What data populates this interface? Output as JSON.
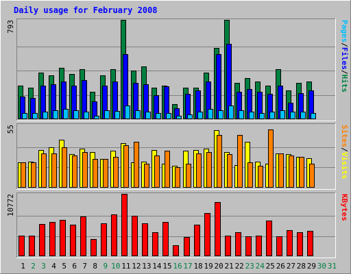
{
  "title": "Daily usage for February 2008",
  "colors": {
    "background": "#c0c0c0",
    "plot_bg": "#c0c0c0",
    "title": "#0000ff",
    "pages": "#00c0ff",
    "files": "#0000ff",
    "hits": "#008040",
    "sites": "#ff8000",
    "visits": "#ffff00",
    "kbytes": "#ff0000",
    "weekend_label": "#008040",
    "weekday_label": "#000000",
    "grid": "#808080"
  },
  "chart_data": [
    {
      "type": "bar",
      "panel": "top",
      "ymax_label": "793",
      "ylim": [
        0,
        793
      ],
      "x": [
        1,
        2,
        3,
        4,
        5,
        6,
        7,
        8,
        9,
        10,
        11,
        12,
        13,
        14,
        15,
        16,
        17,
        18,
        19,
        20,
        21,
        22,
        23,
        24,
        25,
        26,
        27,
        28,
        29,
        30,
        31
      ],
      "series": [
        {
          "name": "Hits",
          "values": [
            270,
            250,
            370,
            350,
            410,
            360,
            400,
            220,
            350,
            400,
            793,
            390,
            420,
            250,
            270,
            120,
            250,
            250,
            370,
            570,
            793,
            290,
            330,
            300,
            270,
            400,
            230,
            290,
            300,
            0,
            0
          ]
        },
        {
          "name": "Files",
          "values": [
            180,
            170,
            270,
            280,
            300,
            270,
            310,
            140,
            270,
            300,
            520,
            290,
            280,
            190,
            260,
            90,
            200,
            230,
            300,
            520,
            600,
            220,
            240,
            220,
            200,
            270,
            130,
            210,
            230,
            0,
            0
          ]
        },
        {
          "name": "Pages",
          "values": [
            50,
            50,
            60,
            70,
            80,
            70,
            60,
            30,
            70,
            65,
            110,
            70,
            60,
            50,
            50,
            25,
            40,
            60,
            80,
            70,
            110,
            70,
            60,
            50,
            60,
            70,
            60,
            60,
            50,
            0,
            0
          ]
        }
      ],
      "legend": [
        "Pages",
        "Files",
        "Hits"
      ]
    },
    {
      "type": "bar",
      "panel": "middle",
      "ymax_label": "55",
      "ylim": [
        0,
        55
      ],
      "x": [
        1,
        2,
        3,
        4,
        5,
        6,
        7,
        8,
        9,
        10,
        11,
        12,
        13,
        14,
        15,
        16,
        17,
        18,
        19,
        20,
        21,
        22,
        23,
        24,
        25,
        26,
        27,
        28,
        29,
        30,
        31
      ],
      "series": [
        {
          "name": "Visits",
          "values": [
            22,
            23,
            33,
            35,
            42,
            29,
            34,
            31,
            25,
            32,
            39,
            22,
            23,
            33,
            21,
            19,
            32,
            33,
            34,
            50,
            31,
            20,
            40,
            23,
            21,
            30,
            29,
            27,
            26,
            0,
            0
          ]
        },
        {
          "name": "Sites",
          "values": [
            22,
            22,
            30,
            30,
            35,
            28,
            31,
            25,
            25,
            27,
            37,
            40,
            21,
            28,
            32,
            18,
            21,
            30,
            31,
            46,
            29,
            46,
            22,
            19,
            51,
            30,
            28,
            27,
            21,
            0,
            0
          ]
        }
      ],
      "legend": [
        "Sites",
        "Visits"
      ]
    },
    {
      "type": "bar",
      "panel": "bottom",
      "ymax_label": "10772",
      "ylim": [
        0,
        10772
      ],
      "x": [
        1,
        2,
        3,
        4,
        5,
        6,
        7,
        8,
        9,
        10,
        11,
        12,
        13,
        14,
        15,
        16,
        17,
        18,
        19,
        20,
        21,
        22,
        23,
        24,
        25,
        26,
        27,
        28,
        29,
        30,
        31
      ],
      "series": [
        {
          "name": "KBytes",
          "values": [
            3600,
            3500,
            5600,
            5900,
            6300,
            5400,
            6900,
            3000,
            5700,
            7200,
            10772,
            7000,
            5700,
            4200,
            5900,
            1900,
            3300,
            5400,
            7500,
            9300,
            3600,
            4200,
            3400,
            3500,
            6200,
            3400,
            4500,
            4100,
            4400,
            0,
            0
          ]
        }
      ],
      "legend": [
        "KBytes"
      ]
    }
  ],
  "x_labels": [
    "1",
    "2",
    "3",
    "4",
    "5",
    "6",
    "7",
    "8",
    "9",
    "10",
    "11",
    "12",
    "13",
    "14",
    "15",
    "16",
    "17",
    "18",
    "19",
    "20",
    "21",
    "22",
    "23",
    "24",
    "25",
    "26",
    "27",
    "28",
    "29",
    "30",
    "31"
  ],
  "weekend_days": [
    2,
    3,
    9,
    10,
    16,
    17,
    23,
    24,
    30,
    31
  ],
  "legend_labels": {
    "top": [
      {
        "text": "Pages",
        "color": "#00c0ff"
      },
      {
        "text": "/",
        "color": "#000000"
      },
      {
        "text": "Files",
        "color": "#0000ff"
      },
      {
        "text": "/",
        "color": "#000000"
      },
      {
        "text": "Hits",
        "color": "#008040"
      }
    ],
    "middle": [
      {
        "text": "Sites",
        "color": "#ff8000"
      },
      {
        "text": "/",
        "color": "#000000"
      },
      {
        "text": "Visits",
        "color": "#ffff00"
      }
    ],
    "bottom": [
      {
        "text": "KBytes",
        "color": "#ff0000"
      }
    ]
  }
}
